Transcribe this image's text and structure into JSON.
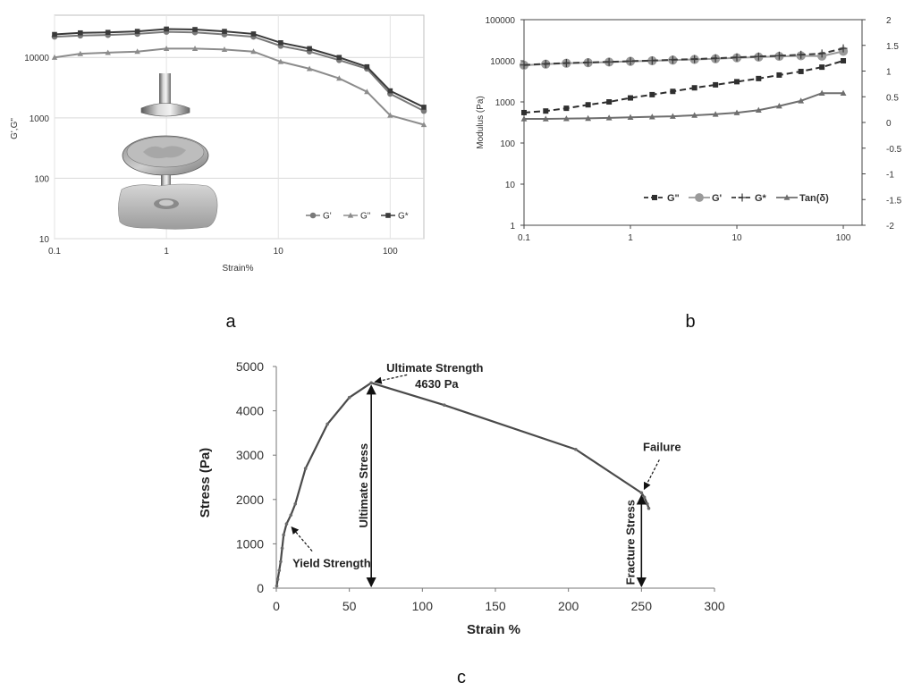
{
  "panels": {
    "a": "a",
    "b": "b",
    "c": "c"
  },
  "chart_data": [
    {
      "id": "a",
      "type": "line",
      "xscale": "log",
      "yscale": "log",
      "xlabel": "Strain%",
      "ylabel": "G',G\"",
      "xlim": [
        0.1,
        200
      ],
      "ylim": [
        10,
        50000
      ],
      "xticks": [
        "0.1",
        "1",
        "10",
        "100"
      ],
      "yticks": [
        "10",
        "100",
        "1000",
        "10000"
      ],
      "legend_position": "bottom-right",
      "x": [
        0.1,
        0.17,
        0.3,
        0.55,
        1.0,
        1.8,
        3.3,
        6.0,
        10.5,
        19,
        35,
        62,
        100,
        200
      ],
      "series": [
        {
          "name": "G'",
          "marker": "circle",
          "color": "#7a7a7a",
          "values": [
            22000,
            23000,
            23500,
            24500,
            26500,
            26000,
            24000,
            22000,
            15500,
            12500,
            9000,
            6500,
            2500,
            1300
          ]
        },
        {
          "name": "G\"",
          "marker": "triangle",
          "color": "#8c8c8c",
          "values": [
            10000,
            11500,
            12000,
            12500,
            14000,
            14000,
            13500,
            12500,
            8500,
            6500,
            4500,
            2700,
            1100,
            770
          ]
        },
        {
          "name": "G*",
          "marker": "square",
          "color": "#3a3a3a",
          "values": [
            24000,
            25500,
            26000,
            27000,
            29500,
            29000,
            27000,
            24500,
            17500,
            14000,
            10000,
            7000,
            2800,
            1500
          ]
        }
      ]
    },
    {
      "id": "b",
      "type": "line",
      "xscale": "log",
      "yscale": "log",
      "xlabel": "",
      "ylabel": "Modulus (Pa)",
      "xlim": [
        0.1,
        150
      ],
      "ylim": [
        1,
        100000
      ],
      "y2lim": [
        -2,
        2
      ],
      "xticks": [
        "0.1",
        "1",
        "10",
        "100"
      ],
      "yticks": [
        "1",
        "10",
        "100",
        "1000",
        "10000",
        "100000"
      ],
      "y2ticks": [
        "-2",
        "-1.5",
        "-1",
        "-0.5",
        "0",
        "0.5",
        "1",
        "1.5",
        "2"
      ],
      "legend_position": "bottom-right",
      "x": [
        0.1,
        0.16,
        0.25,
        0.4,
        0.63,
        1.0,
        1.6,
        2.5,
        4.0,
        6.3,
        10,
        16,
        25,
        40,
        63,
        100
      ],
      "series": [
        {
          "name": "G\"",
          "marker": "square",
          "line": "dashed",
          "color": "#2f2f2f",
          "axis": "left",
          "values": [
            550,
            600,
            700,
            850,
            1000,
            1250,
            1500,
            1800,
            2200,
            2600,
            3100,
            3700,
            4500,
            5500,
            7000,
            10000
          ]
        },
        {
          "name": "G'",
          "marker": "circle",
          "line": "solid",
          "color": "#9a9a9a",
          "axis": "left",
          "values": [
            7800,
            8300,
            8700,
            9000,
            9300,
            9700,
            10000,
            10400,
            10800,
            11200,
            11800,
            12300,
            12800,
            13200,
            13000,
            17000
          ]
        },
        {
          "name": "G*",
          "marker": "plus",
          "line": "dashed",
          "color": "#3a3a3a",
          "axis": "left",
          "values": [
            7900,
            8400,
            8800,
            9100,
            9400,
            9800,
            10100,
            10600,
            11000,
            11500,
            12100,
            12700,
            13300,
            14000,
            15000,
            20000
          ]
        },
        {
          "name": "Tan(δ)",
          "marker": "triangle",
          "line": "solid",
          "color": "#6e6e6e",
          "axis": "right",
          "values": [
            0.07,
            0.07,
            0.075,
            0.08,
            0.09,
            0.1,
            0.11,
            0.12,
            0.14,
            0.16,
            0.19,
            0.24,
            0.32,
            0.42,
            0.57,
            0.57
          ]
        }
      ]
    },
    {
      "id": "c",
      "type": "line",
      "xlabel": "Strain %",
      "ylabel": "Stress (Pa)",
      "xlim": [
        0,
        300
      ],
      "ylim": [
        0,
        5000
      ],
      "xticks": [
        "0",
        "50",
        "100",
        "150",
        "200",
        "250",
        "300"
      ],
      "yticks": [
        "0",
        "1000",
        "2000",
        "3000",
        "4000",
        "5000"
      ],
      "series": [
        {
          "name": "",
          "color": "#4a4a4a",
          "x": [
            0.3,
            1,
            2,
            3,
            4,
            5,
            7,
            10,
            13,
            20,
            35,
            50,
            65,
            115,
            205,
            250,
            252,
            254,
            255
          ],
          "values": [
            50,
            200,
            400,
            600,
            900,
            1200,
            1450,
            1650,
            1900,
            2700,
            3700,
            4300,
            4630,
            4130,
            3130,
            2150,
            2050,
            1900,
            1800
          ]
        }
      ],
      "annotations": {
        "ultimate_strength": "Ultimate Strength",
        "ultimate_value": "4630 Pa",
        "ultimate_stress": "Ultimate Stress",
        "yield_strength": "Yield Strength",
        "failure": "Failure",
        "fracture_stress": "Fracture Stress"
      },
      "ultimate": {
        "x": 65,
        "y": 4630
      },
      "yield": {
        "x": 8,
        "y": 1500
      },
      "failure": {
        "x": 250,
        "y": 2150
      }
    }
  ]
}
